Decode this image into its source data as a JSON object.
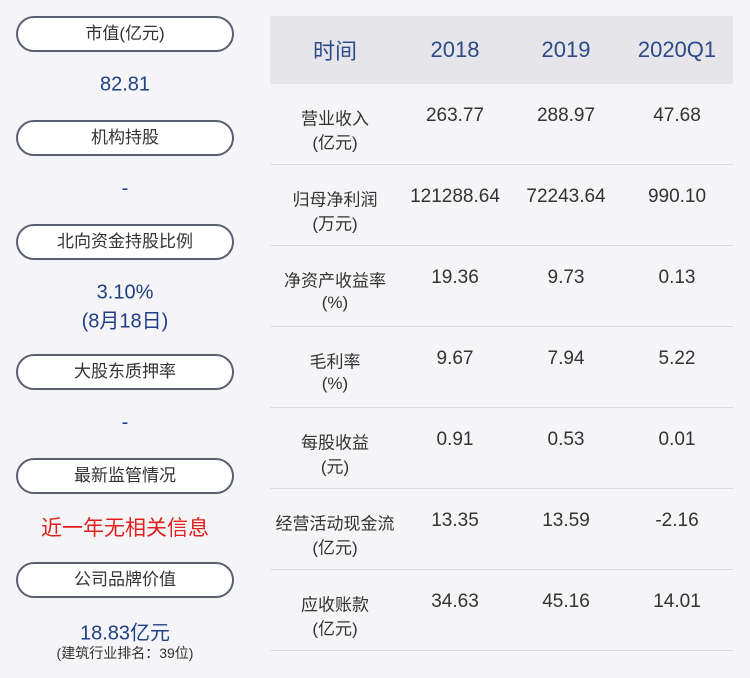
{
  "left": [
    {
      "label": "市值(亿元)",
      "lines": [
        "82.81"
      ]
    },
    {
      "label": "机构持股",
      "lines": [
        "-"
      ]
    },
    {
      "label": "北向资金持股比例",
      "lines": [
        "3.10%",
        "(8月18日)"
      ]
    },
    {
      "label": "大股东质押率",
      "lines": [
        "-"
      ]
    },
    {
      "label": "最新监管情况",
      "lines": [
        "近一年无相关信息"
      ]
    },
    {
      "label": "公司品牌价值",
      "lines": [
        "18.83亿元",
        "(建筑行业排名：39位)"
      ]
    }
  ],
  "table": {
    "header": [
      "时间",
      "2018",
      "2019",
      "2020Q1"
    ],
    "rows": [
      {
        "name": [
          "营业收入",
          "(亿元)"
        ],
        "cells": [
          "263.77",
          "288.97",
          "47.68"
        ]
      },
      {
        "name": [
          "归母净利润",
          "(万元)"
        ],
        "cells": [
          "121288.64",
          "72243.64",
          "990.10"
        ]
      },
      {
        "name": [
          "净资产收益率",
          "(%)"
        ],
        "cells": [
          "19.36",
          "9.73",
          "0.13"
        ]
      },
      {
        "name": [
          "毛利率",
          "(%)"
        ],
        "cells": [
          "9.67",
          "7.94",
          "5.22"
        ]
      },
      {
        "name": [
          "每股收益",
          "(元)"
        ],
        "cells": [
          "0.91",
          "0.53",
          "0.01"
        ]
      },
      {
        "name": [
          "经营活动现金流",
          "(亿元)"
        ],
        "cells": [
          "13.35",
          "13.59",
          "-2.16"
        ]
      },
      {
        "name": [
          "应收账款",
          "(亿元)"
        ],
        "cells": [
          "34.63",
          "45.16",
          "14.01"
        ]
      }
    ]
  }
}
